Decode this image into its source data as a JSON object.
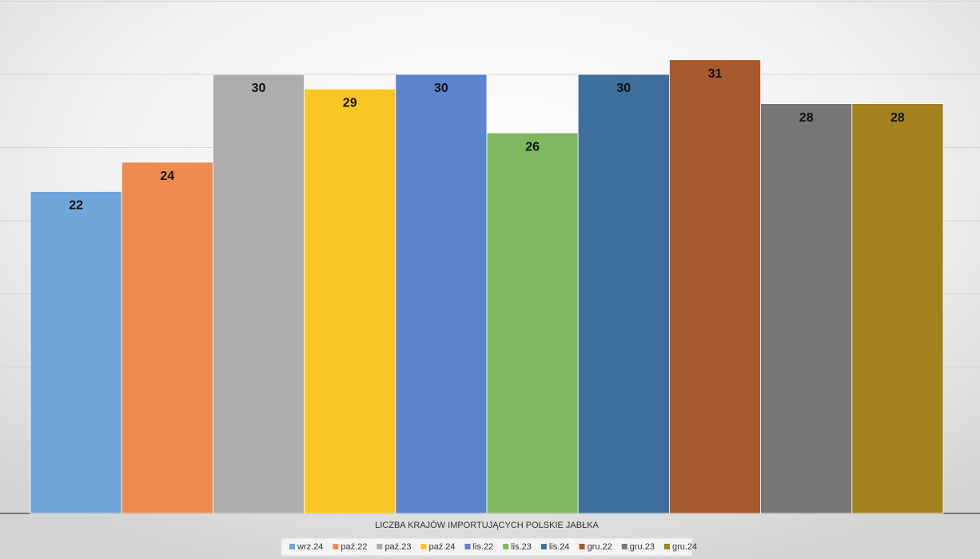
{
  "chart_data": {
    "type": "bar",
    "categories": [
      "LICZBA KRAJÓW IMPORTUJĄCYCH POLSKIE JABŁKA"
    ],
    "series": [
      {
        "name": "wrz.24",
        "color": "#6fa5d8",
        "values": [
          22
        ]
      },
      {
        "name": "paź.22",
        "color": "#ee8c4f",
        "values": [
          24
        ]
      },
      {
        "name": "paź.23",
        "color": "#adadad",
        "values": [
          30
        ]
      },
      {
        "name": "paź.24",
        "color": "#f9c623",
        "values": [
          29
        ]
      },
      {
        "name": "lis.22",
        "color": "#5b84cc",
        "values": [
          30
        ]
      },
      {
        "name": "lis.23",
        "color": "#7db75e",
        "values": [
          26
        ]
      },
      {
        "name": "lis.24",
        "color": "#3f6f9c",
        "values": [
          30
        ]
      },
      {
        "name": "gru.22",
        "color": "#a65a2d",
        "values": [
          31
        ]
      },
      {
        "name": "gru.23",
        "color": "#777777",
        "values": [
          28
        ]
      },
      {
        "name": "gru.24",
        "color": "#a4821f",
        "values": [
          28
        ]
      }
    ],
    "ylim": [
      0,
      35
    ],
    "yticks": [
      0,
      5,
      10,
      15,
      20,
      25,
      30,
      35
    ],
    "grid": true,
    "legend": "bottom"
  }
}
